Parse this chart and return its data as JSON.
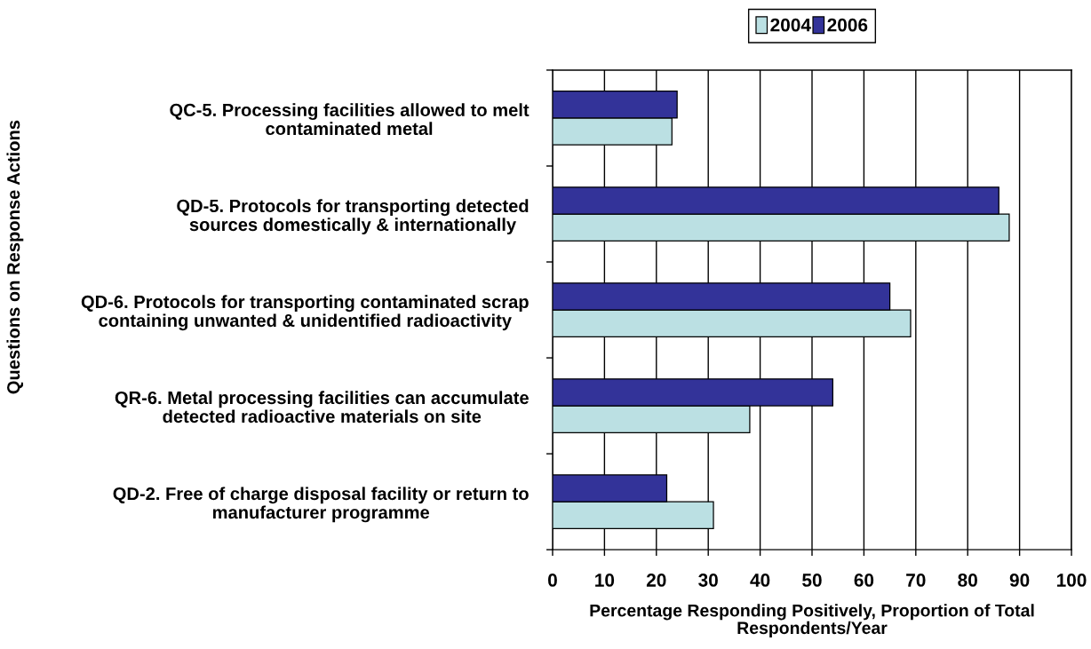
{
  "chart_data": {
    "type": "bar",
    "orientation": "horizontal",
    "categories": [
      "QC-5. Processing facilities allowed to melt\ncontaminated metal",
      "QD-5. Protocols for transporting detected\nsources domestically & internationally",
      "QD-6. Protocols for transporting contaminated scrap\ncontaining unwanted & unidentified radioactivity",
      "QR-6. Metal processing facilities can accumulate\ndetected radioactive materials on site",
      "QD-2. Free of charge disposal facility or return to\nmanufacturer programme"
    ],
    "series": [
      {
        "name": "2004",
        "color": "#bbe0e3",
        "values": [
          23,
          88,
          69,
          38,
          31
        ]
      },
      {
        "name": "2006",
        "color": "#333399",
        "values": [
          24,
          86,
          65,
          54,
          22
        ]
      }
    ],
    "xlabel": "Percentage Responding Positively, Proportion of Total\nRespondents/Year",
    "ylabel": "Questions on Response Actions",
    "xlim": [
      0,
      100
    ],
    "xticks": [
      0,
      10,
      20,
      30,
      40,
      50,
      60,
      70,
      80,
      90,
      100
    ],
    "grid": "x",
    "legend": "top"
  }
}
